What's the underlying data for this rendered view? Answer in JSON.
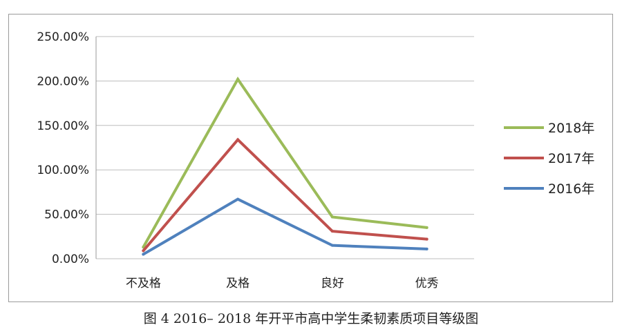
{
  "chart_data": {
    "type": "line",
    "categories": [
      "不及格",
      "及格",
      "良好",
      "优秀"
    ],
    "y_ticks": [
      "0.00%",
      "50.00%",
      "100.00%",
      "150.00%",
      "200.00%",
      "250.00%"
    ],
    "ylim": [
      0,
      250
    ],
    "grid": true,
    "legend_position": "right",
    "series": [
      {
        "name": "2018年",
        "color": "#9bbb59",
        "values": [
          13,
          202,
          47,
          35
        ]
      },
      {
        "name": "2017年",
        "color": "#c0504d",
        "values": [
          9,
          134,
          31,
          22
        ]
      },
      {
        "name": "2016年",
        "color": "#4f81bd",
        "values": [
          5,
          67,
          15,
          11
        ]
      }
    ]
  },
  "caption": "图 4  2016– 2018 年开平市高中学生柔韧素质项目等级图"
}
